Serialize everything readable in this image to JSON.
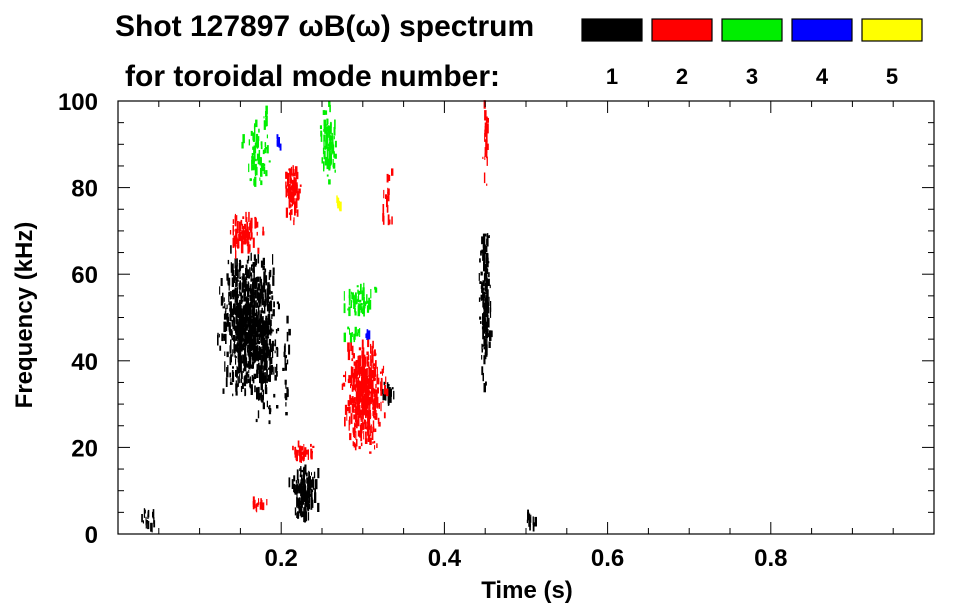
{
  "chart_data": {
    "type": "heatmap",
    "title_line1": "Shot 127897 ωB(ω) spectrum",
    "title_line2": "for toroidal mode number:",
    "xlabel": "Time (s)",
    "ylabel": "Frequency (kHz)",
    "xlim": [
      0.0,
      1.0
    ],
    "ylim": [
      0,
      100
    ],
    "xticks": [
      0.2,
      0.4,
      0.6,
      0.8
    ],
    "xtick_labels": [
      "0.2",
      "0.4",
      "0.6",
      "0.8"
    ],
    "yticks": [
      0,
      20,
      40,
      60,
      80,
      100
    ],
    "ytick_labels": [
      "0",
      "20",
      "40",
      "60",
      "80",
      "100"
    ],
    "legend": [
      {
        "n": "1",
        "color": "#000000"
      },
      {
        "n": "2",
        "color": "#ff0000"
      },
      {
        "n": "3",
        "color": "#00ee00"
      },
      {
        "n": "4",
        "color": "#0000ff"
      },
      {
        "n": "5",
        "color": "#ffff00"
      }
    ],
    "regions": [
      {
        "mode": 1,
        "t0": 0.117,
        "t1": 0.197,
        "f0": 30,
        "f1": 66,
        "density": 0.85
      },
      {
        "mode": 1,
        "t0": 0.16,
        "t1": 0.2,
        "f0": 24,
        "f1": 62,
        "density": 0.35
      },
      {
        "mode": 1,
        "t0": 0.205,
        "t1": 0.25,
        "f0": 3,
        "f1": 16,
        "density": 0.9
      },
      {
        "mode": 1,
        "t0": 0.44,
        "t1": 0.458,
        "f0": 33,
        "f1": 72,
        "density": 0.7
      },
      {
        "mode": 1,
        "t0": 0.32,
        "t1": 0.34,
        "f0": 29,
        "f1": 36,
        "density": 0.6
      },
      {
        "mode": 1,
        "t0": 0.025,
        "t1": 0.05,
        "f0": 1,
        "f1": 6,
        "density": 0.45
      },
      {
        "mode": 1,
        "t0": 0.495,
        "t1": 0.515,
        "f0": 1,
        "f1": 5,
        "density": 0.5
      },
      {
        "mode": 1,
        "t0": 0.2,
        "t1": 0.212,
        "f0": 25,
        "f1": 50,
        "density": 0.25
      },
      {
        "mode": 2,
        "t0": 0.27,
        "t1": 0.33,
        "f0": 18,
        "f1": 45,
        "density": 0.85
      },
      {
        "mode": 2,
        "t0": 0.2,
        "t1": 0.225,
        "f0": 71,
        "f1": 87,
        "density": 0.75
      },
      {
        "mode": 2,
        "t0": 0.13,
        "t1": 0.18,
        "f0": 64,
        "f1": 75,
        "density": 0.55
      },
      {
        "mode": 2,
        "t0": 0.205,
        "t1": 0.245,
        "f0": 16,
        "f1": 21,
        "density": 0.6
      },
      {
        "mode": 2,
        "t0": 0.445,
        "t1": 0.455,
        "f0": 78,
        "f1": 100,
        "density": 0.4
      },
      {
        "mode": 2,
        "t0": 0.15,
        "t1": 0.19,
        "f0": 5,
        "f1": 8,
        "density": 0.45
      },
      {
        "mode": 2,
        "t0": 0.32,
        "t1": 0.34,
        "f0": 70,
        "f1": 85,
        "density": 0.2
      },
      {
        "mode": 3,
        "t0": 0.245,
        "t1": 0.27,
        "f0": 80,
        "f1": 100,
        "density": 0.55
      },
      {
        "mode": 3,
        "t0": 0.15,
        "t1": 0.19,
        "f0": 80,
        "f1": 95,
        "density": 0.35
      },
      {
        "mode": 3,
        "t0": 0.27,
        "t1": 0.32,
        "f0": 50,
        "f1": 58,
        "density": 0.5
      },
      {
        "mode": 3,
        "t0": 0.175,
        "t1": 0.185,
        "f0": 92,
        "f1": 100,
        "density": 0.4
      },
      {
        "mode": 3,
        "t0": 0.27,
        "t1": 0.305,
        "f0": 44,
        "f1": 48,
        "density": 0.35
      },
      {
        "mode": 4,
        "t0": 0.3,
        "t1": 0.31,
        "f0": 44,
        "f1": 48,
        "density": 0.25
      },
      {
        "mode": 4,
        "t0": 0.19,
        "t1": 0.2,
        "f0": 88,
        "f1": 92,
        "density": 0.2
      },
      {
        "mode": 5,
        "t0": 0.265,
        "t1": 0.275,
        "f0": 75,
        "f1": 78,
        "density": 0.2
      }
    ]
  }
}
